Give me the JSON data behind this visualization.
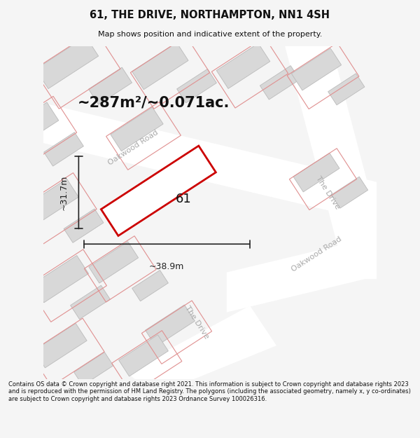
{
  "title": "61, THE DRIVE, NORTHAMPTON, NN1 4SH",
  "subtitle": "Map shows position and indicative extent of the property.",
  "footer": "Contains OS data © Crown copyright and database right 2021. This information is subject to Crown copyright and database rights 2023 and is reproduced with the permission of HM Land Registry. The polygons (including the associated geometry, namely x, y co-ordinates) are subject to Crown copyright and database rights 2023 Ordnance Survey 100026316.",
  "area_label": "~287m²/~0.071ac.",
  "width_label": "~38.9m",
  "height_label": "~31.7m",
  "plot_label": "61",
  "map_bg": "#efefef",
  "page_bg": "#f5f5f5",
  "road_fill": "#ffffff",
  "building_fill": "#d8d8d8",
  "building_edge": "#bbbbbb",
  "lot_edge": "#e09090",
  "plot_fill": "#ffffff",
  "plot_edge": "#cc0000",
  "dim_color": "#222222",
  "road_label_color": "#aaaaaa",
  "text_color": "#111111",
  "ang": 33
}
